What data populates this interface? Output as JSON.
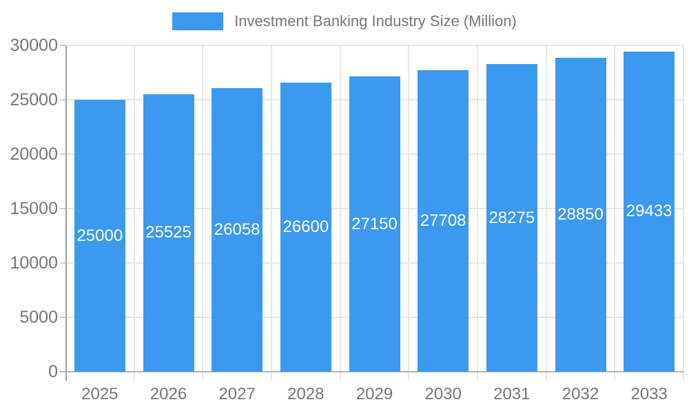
{
  "legend": {
    "label": "Investment Banking Industry Size (Million)"
  },
  "chart_data": {
    "type": "bar",
    "title": "Investment Banking Industry Size (Million)",
    "categories": [
      "2025",
      "2026",
      "2027",
      "2028",
      "2029",
      "2030",
      "2031",
      "2032",
      "2033"
    ],
    "values": [
      25000,
      25525,
      26058,
      26600,
      27150,
      27708,
      28275,
      28850,
      29433
    ],
    "series": [
      {
        "name": "Investment Banking Industry Size (Million)",
        "values": [
          25000,
          25525,
          26058,
          26600,
          27150,
          27708,
          28275,
          28850,
          29433
        ]
      }
    ],
    "xlabel": "",
    "ylabel": "",
    "ylim": [
      0,
      30000
    ],
    "yticks": [
      0,
      5000,
      10000,
      15000,
      20000,
      25000,
      30000
    ],
    "grid": true,
    "value_labels_inside_bars": true,
    "legend_position": "top-center",
    "colors": {
      "bar": "#3B99F0",
      "gridline": "#E6E6E6",
      "axis_line": "#9E9E9E",
      "baseline": "#B3B3B3",
      "axis_text": "#757575",
      "value_text": "#FFFFFF",
      "background": "#FFFFFF"
    }
  }
}
